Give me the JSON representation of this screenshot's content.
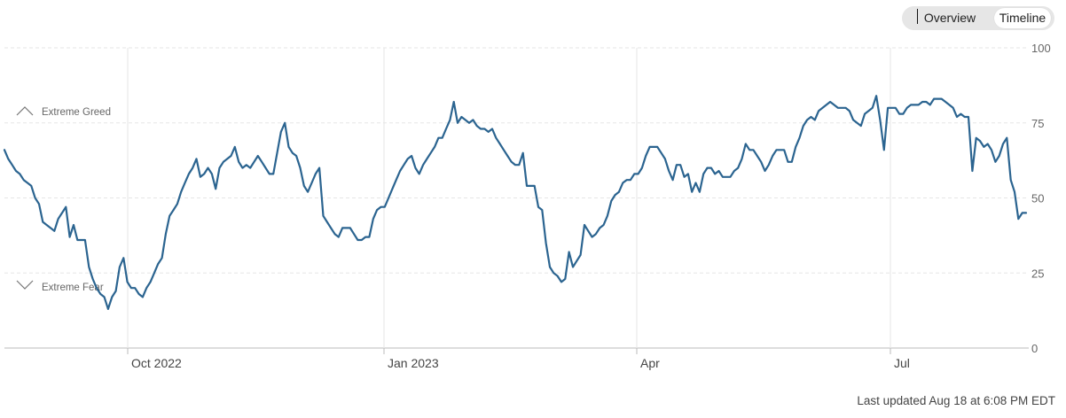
{
  "toggle": {
    "overview_label": "Overview",
    "timeline_label": "Timeline",
    "active": "Timeline"
  },
  "footer": {
    "updated_label": "Last updated Aug 18 at 6:08 PM EDT"
  },
  "colors": {
    "line": "#2b6490",
    "grid": "#e6e6e6",
    "axis": "#bbbbbb",
    "label": "#666666"
  },
  "chart_data": {
    "type": "line",
    "ylim": [
      0,
      100
    ],
    "y_ticks": [
      0,
      25,
      50,
      75,
      100
    ],
    "x_ticks": [
      "Oct 2022",
      "Jan 2023",
      "Apr",
      "Jul"
    ],
    "grid": true,
    "zones": [
      {
        "label": "Extreme Greed",
        "icon": "chevron-up-icon",
        "value": 75
      },
      {
        "label": "Extreme Fear",
        "icon": "chevron-down-icon",
        "value": 25
      }
    ],
    "series": [
      {
        "values": [
          66,
          63,
          61,
          59,
          58,
          56,
          55,
          54,
          50,
          48,
          42,
          41,
          40,
          39,
          43,
          45,
          47,
          37,
          41,
          36,
          36,
          36,
          27,
          23,
          20,
          18,
          17,
          13,
          17,
          19,
          27,
          30,
          22,
          20,
          20,
          18,
          17,
          20,
          22,
          25,
          28,
          30,
          38,
          44,
          46,
          48,
          52,
          55,
          58,
          60,
          63,
          57,
          58,
          60,
          58,
          53,
          60,
          62,
          63,
          64,
          67,
          62,
          60,
          61,
          60,
          62,
          64,
          62,
          60,
          58,
          58,
          65,
          72,
          75,
          67,
          65,
          64,
          60,
          54,
          52,
          55,
          58,
          60,
          44,
          42,
          40,
          38,
          37,
          40,
          40,
          40,
          38,
          36,
          36,
          37,
          37,
          43,
          46,
          47,
          47,
          50,
          53,
          56,
          59,
          61,
          63,
          64,
          60,
          58,
          61,
          63,
          65,
          67,
          70,
          70,
          73,
          76,
          82,
          75,
          77,
          76,
          75,
          76,
          74,
          73,
          73,
          72,
          73,
          70,
          68,
          66,
          64,
          62,
          61,
          61,
          65,
          54,
          54,
          54,
          47,
          46,
          35,
          27,
          25,
          24,
          22,
          23,
          32,
          27,
          29,
          31,
          41,
          39,
          37,
          38,
          40,
          41,
          44,
          49,
          51,
          52,
          55,
          56,
          56,
          58,
          58,
          60,
          64,
          67,
          67,
          67,
          65,
          63,
          59,
          56,
          61,
          61,
          57,
          58,
          52,
          55,
          52,
          58,
          60,
          60,
          58,
          59,
          57,
          57,
          57,
          59,
          60,
          63,
          68,
          66,
          66,
          64,
          62,
          59,
          61,
          64,
          66,
          66,
          66,
          62,
          62,
          67,
          70,
          74,
          76,
          77,
          76,
          79,
          80,
          81,
          82,
          81,
          80,
          80,
          80,
          79,
          76,
          75,
          74,
          78,
          79,
          80,
          84,
          76,
          66,
          80,
          80,
          80,
          78,
          78,
          80,
          81,
          81,
          81,
          82,
          82,
          81,
          83,
          83,
          83,
          82,
          81,
          80,
          77,
          78,
          77,
          77,
          59,
          70,
          69,
          67,
          68,
          66,
          62,
          64,
          68,
          70,
          56,
          52,
          43,
          45,
          45
        ]
      }
    ]
  }
}
